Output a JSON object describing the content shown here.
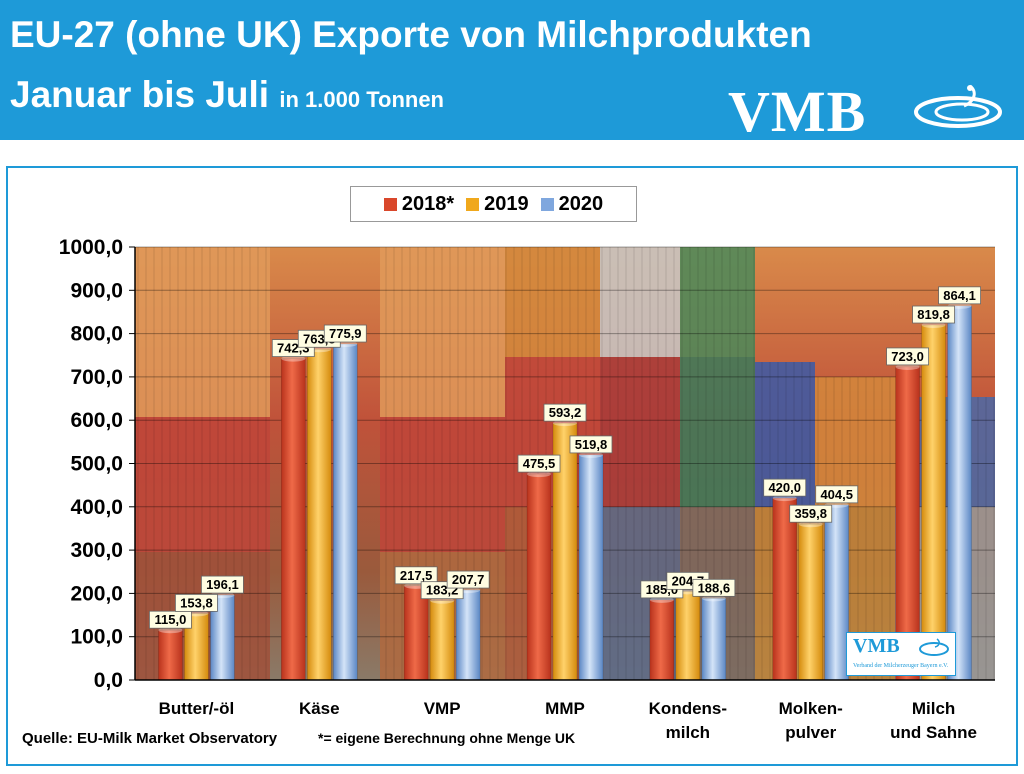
{
  "header": {
    "title_line1": "EU-27 (ohne UK) Exporte von Milchprodukten",
    "title_line2": "Januar bis Juli",
    "title_unit": "in 1.000 Tonnen",
    "logo_text": "VMB"
  },
  "colors": {
    "header_bg": "#1e9ad8",
    "series_2018": "#d9472b",
    "series_2019": "#f0a81c",
    "series_2020": "#7fa7de"
  },
  "chart_data": {
    "type": "bar",
    "title": "EU-27 (ohne UK) Exporte von Milchprodukten Januar bis Juli in 1.000 Tonnen",
    "categories": [
      [
        "Butter/-öl"
      ],
      [
        "Käse"
      ],
      [
        "VMP"
      ],
      [
        "MMP"
      ],
      [
        "Kondens-",
        "milch"
      ],
      [
        "Molken-",
        "pulver"
      ],
      [
        "Milch",
        "und Sahne"
      ]
    ],
    "series": [
      {
        "name": "2018*",
        "values": [
          115.0,
          742.3,
          217.5,
          475.5,
          185.0,
          420.0,
          723.0
        ],
        "labels": [
          "115,0",
          "742,3",
          "217,5",
          "475,5",
          "185,0",
          "420,0",
          "723,0"
        ]
      },
      {
        "name": "2019",
        "values": [
          153.8,
          763.8,
          183.2,
          593.2,
          204.7,
          359.8,
          819.8
        ],
        "labels": [
          "153,8",
          "763,8",
          "183,2",
          "593,2",
          "204,7",
          "359,8",
          "819,8"
        ]
      },
      {
        "name": "2020",
        "values": [
          196.1,
          775.9,
          207.7,
          519.8,
          188.6,
          404.5,
          864.1
        ],
        "labels": [
          "196,1",
          "775,9",
          "207,7",
          "519,8",
          "188,6",
          "404,5",
          "864,1"
        ]
      }
    ],
    "ylim": [
      0,
      1000
    ],
    "yticks": [
      "0,0",
      "100,0",
      "200,0",
      "300,0",
      "400,0",
      "500,0",
      "600,0",
      "700,0",
      "800,0",
      "900,0",
      "1000,0"
    ],
    "legend_position": "top-center",
    "grid": true
  },
  "footer": {
    "source": "Quelle: EU-Milk Market Observatory",
    "footnote": "*= eigene Berechnung ohne Menge UK"
  },
  "small_logo": {
    "text": "VMB",
    "subtitle": "Verband der Milcherzeuger Bayern e.V."
  }
}
